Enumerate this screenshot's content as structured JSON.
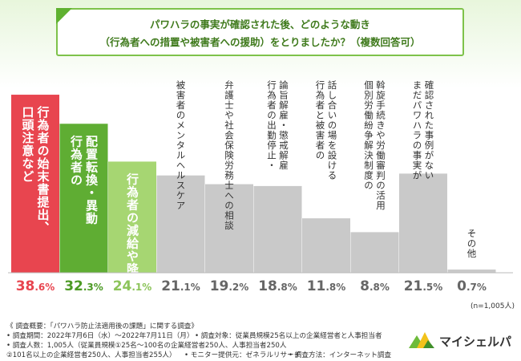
{
  "title": {
    "line1": "パワハラの事実が確認された後、どのような動き",
    "line2": "（行為者への措置や被害者への援助）をとりましたか？（複数回答可）"
  },
  "sample_note": "(n=1,005人)",
  "footnotes": {
    "line1": "《 調査概要：「パワハラ防止法適用後の課題」に関する調査》",
    "period": "• 調査期間：2022年7月6日（水）〜2022年7月11日（月）",
    "target": "• 調査対象：従業員規模25名以上の企業経営者と人事担当者",
    "count": "• 調査人数：1,005人（従業員規模①25名〜100名の企業経営者250人、人事担当者250人",
    "count2": "②101名以上の企業経営者250人、人事担当者255人）",
    "provider": "• モニター提供元：ゼネラルリサーチ",
    "method": "• 調査方法：インターネット調査"
  },
  "brand": {
    "name": "マイシェルパ"
  },
  "colors": {
    "rank1": "#e8454f",
    "rank2": "#5fad33",
    "rank3": "#a6d672",
    "other": "#c9c9c9",
    "rank1_text": "#e8454f",
    "rank2_text": "#4c9a24",
    "rank3_text": "#8cc45a",
    "other_text": "#666666"
  },
  "chart_data": {
    "type": "bar",
    "unit": "%",
    "ylim": [
      0,
      40
    ],
    "categories": [
      {
        "lines": [
          "行為者の始末書提出、",
          "口頭注意など"
        ]
      },
      {
        "lines": [
          "配置転換・異動",
          "行為者の"
        ]
      },
      {
        "lines": [
          "行為者の減給や降格"
        ]
      },
      {
        "lines": [
          "被害者のメンタルヘルスケア"
        ]
      },
      {
        "lines": [
          "弁護士や社会保険労務士への相談"
        ]
      },
      {
        "lines": [
          "論旨解雇・懲戒解雇",
          "行為者の出勤停止・"
        ]
      },
      {
        "lines": [
          "話し合いの場を設ける",
          "行為者と被害者の"
        ]
      },
      {
        "lines": [
          "斡旋手続きや労働審判の活用",
          "個別労働紛争解決制度の"
        ]
      },
      {
        "lines": [
          "確認された事例がない",
          "まだパワハラの事実が"
        ]
      },
      {
        "lines": [
          "その他"
        ]
      }
    ],
    "values": [
      38.6,
      32.3,
      24.1,
      21.1,
      19.2,
      18.8,
      11.8,
      8.8,
      21.5,
      0.7
    ],
    "value_labels": [
      {
        "int": "38",
        "dec": ".6%"
      },
      {
        "int": "32",
        "dec": ".3%"
      },
      {
        "int": "24",
        "dec": ".1%"
      },
      {
        "int": "21",
        "dec": ".1%"
      },
      {
        "int": "19",
        "dec": ".2%"
      },
      {
        "int": "18",
        "dec": ".8%"
      },
      {
        "int": "11",
        "dec": ".8%"
      },
      {
        "int": "8",
        "dec": ".8%"
      },
      {
        "int": "21",
        "dec": ".5%"
      },
      {
        "int": "0",
        "dec": ".7%"
      }
    ]
  }
}
